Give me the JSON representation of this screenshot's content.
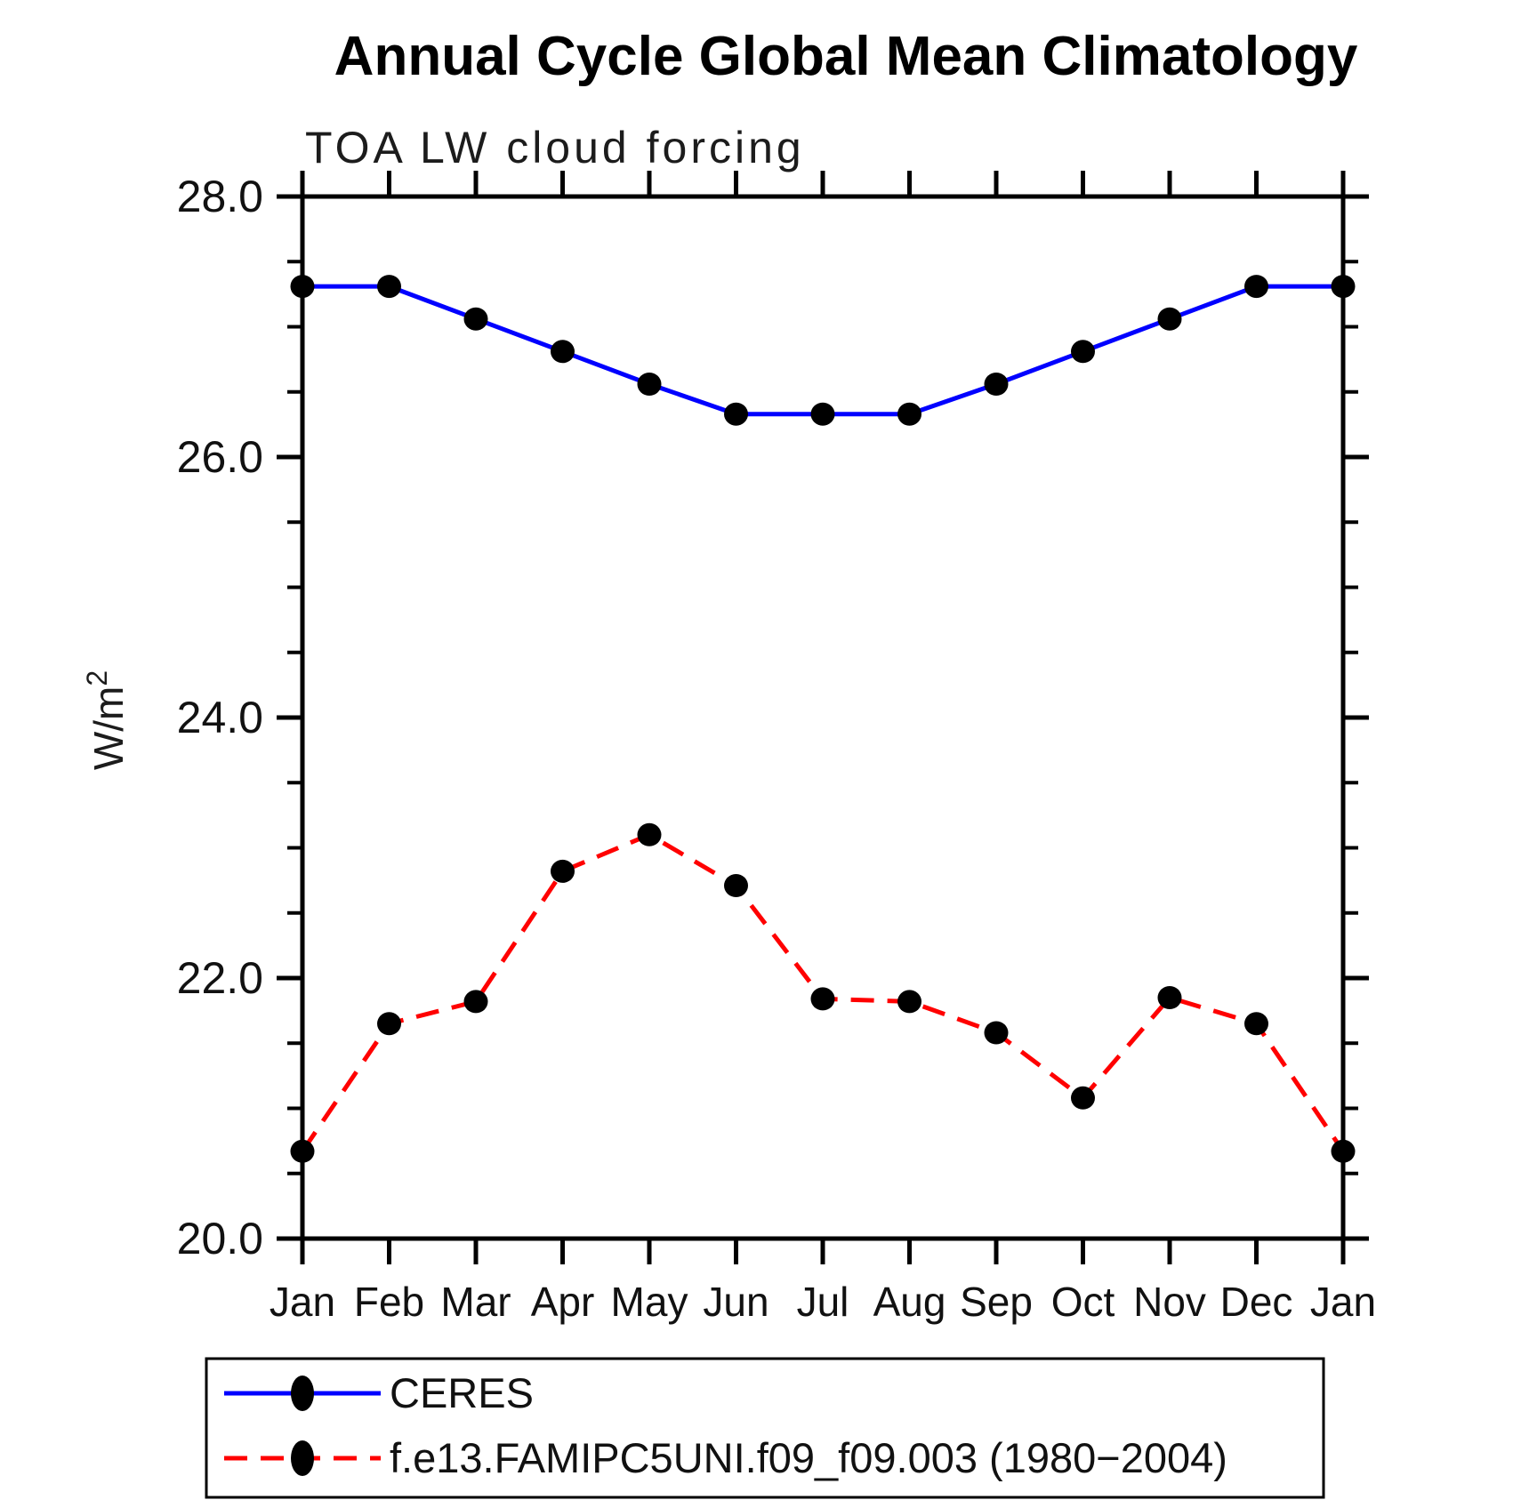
{
  "chart": {
    "title": "Annual Cycle Global Mean Climatology",
    "subtitle": "TOA LW cloud forcing",
    "ylabel_base": "W/m",
    "ylabel_exponent": "2"
  },
  "colors": {
    "ceres_line": "#0000ff",
    "model_line": "#ff0000",
    "marker": "#000000",
    "axis": "#000000"
  },
  "chart_data": {
    "type": "line",
    "title": "Annual Cycle Global Mean Climatology",
    "subtitle": "TOA LW cloud forcing",
    "ylabel": "W/m^2",
    "xlabel": "",
    "grid": false,
    "legend_position": "bottom-left-box",
    "x_tick_labels": [
      "Jan",
      "Feb",
      "Mar",
      "Apr",
      "May",
      "Jun",
      "Jul",
      "Aug",
      "Sep",
      "Oct",
      "Nov",
      "Dec",
      "Jan"
    ],
    "ylim": [
      20.0,
      28.0
    ],
    "ytick_major": [
      20.0,
      22.0,
      24.0,
      26.0,
      28.0
    ],
    "ytick_major_labels": [
      "20.0",
      "22.0",
      "24.0",
      "26.0",
      "28.0"
    ],
    "ytick_minor_interval": 0.5,
    "series": [
      {
        "name": "CERES",
        "color": "#0000ff",
        "style": "solid",
        "marker": "circle",
        "marker_color": "#000000",
        "values": [
          27.31,
          27.31,
          27.06,
          26.81,
          26.56,
          26.33,
          26.33,
          26.33,
          26.56,
          26.81,
          27.06,
          27.31,
          27.31
        ]
      },
      {
        "name": "f.e13.FAMIPC5UNI.f09_f09.003 (1980−2004)",
        "color": "#ff0000",
        "style": "dashed",
        "marker": "circle",
        "marker_color": "#000000",
        "values": [
          20.67,
          21.65,
          21.82,
          22.82,
          23.1,
          22.71,
          21.84,
          21.82,
          21.58,
          21.08,
          21.85,
          21.65,
          20.67
        ]
      }
    ]
  }
}
